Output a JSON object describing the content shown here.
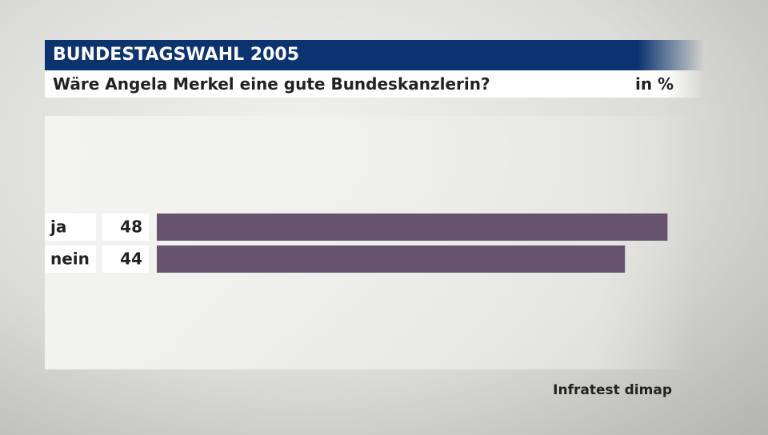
{
  "chart_data": {
    "type": "bar",
    "title": "BUNDESTAGSWAHL 2005",
    "subtitle": "Wäre Angela Merkel eine gute Bundeskanzlerin?",
    "unit": "in %",
    "source": "Infratest dimap",
    "categories": [
      "ja",
      "nein"
    ],
    "values": [
      48,
      44
    ],
    "color": "#66546f"
  }
}
